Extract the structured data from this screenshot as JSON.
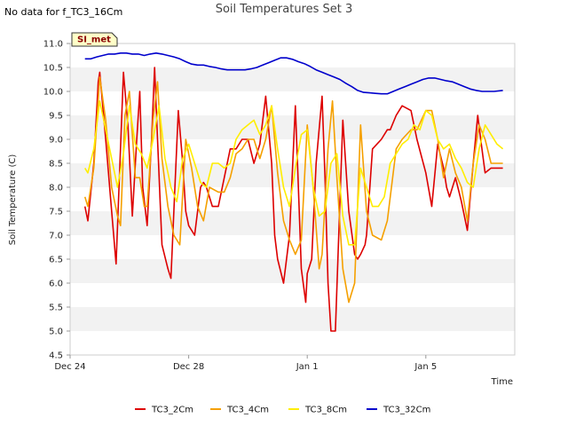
{
  "header": {
    "nodata_text": "No data for f_TC3_16Cm",
    "title": "Soil Temperatures Set 3"
  },
  "badge_label": "SI_met",
  "chart_data": {
    "type": "line",
    "title": "Soil Temperatures Set 3",
    "xlabel": "Time",
    "ylabel": "Soil Temperature (C)",
    "xlim": [
      0,
      15
    ],
    "ylim": [
      4.5,
      11.0
    ],
    "x_ticks": [
      {
        "x": 0,
        "label": "Dec 24"
      },
      {
        "x": 4,
        "label": "Dec 28"
      },
      {
        "x": 8,
        "label": "Jan 1"
      },
      {
        "x": 12,
        "label": "Jan 5"
      }
    ],
    "y_ticks": [
      4.5,
      5.0,
      5.5,
      6.0,
      6.5,
      7.0,
      7.5,
      8.0,
      8.5,
      9.0,
      9.5,
      10.0,
      10.5,
      11.0
    ],
    "y_tick_labels": [
      "4.5",
      "5.0",
      "5.5",
      "6.0",
      "6.5",
      "7.0",
      "7.5",
      "8.0",
      "8.5",
      "9.0",
      "9.5",
      "10.0",
      "10.5",
      "11.0"
    ],
    "grid": "horizontal alternating bands",
    "legend_position": "bottom",
    "series": [
      {
        "name": "TC3_2Cm",
        "color": "#dd0000",
        "x": [
          0.5,
          0.6,
          0.8,
          0.95,
          1.0,
          1.2,
          1.4,
          1.55,
          1.65,
          1.8,
          1.95,
          2.1,
          2.25,
          2.35,
          2.45,
          2.6,
          2.75,
          2.85,
          2.95,
          3.1,
          3.3,
          3.4,
          3.5,
          3.65,
          3.8,
          3.9,
          4.0,
          4.2,
          4.4,
          4.5,
          4.6,
          4.8,
          5.0,
          5.2,
          5.4,
          5.6,
          5.8,
          6.0,
          6.2,
          6.4,
          6.6,
          6.8,
          6.9,
          7.0,
          7.2,
          7.4,
          7.6,
          7.7,
          7.8,
          7.95,
          8.0,
          8.15,
          8.3,
          8.5,
          8.6,
          8.7,
          8.8,
          8.95,
          9.05,
          9.2,
          9.4,
          9.6,
          9.7,
          9.8,
          9.95,
          10.0,
          10.2,
          10.5,
          10.7,
          10.8,
          11.0,
          11.2,
          11.5,
          11.7,
          12.0,
          12.2,
          12.4,
          12.6,
          12.7,
          12.8,
          13.0,
          13.2,
          13.4,
          13.6,
          13.75,
          13.85,
          14.0,
          14.2,
          14.4,
          14.6
        ],
        "y": [
          7.6,
          7.3,
          8.5,
          10.2,
          10.4,
          9.0,
          7.5,
          6.4,
          8.0,
          10.4,
          9.3,
          7.4,
          9.0,
          10.0,
          8.0,
          7.2,
          9.0,
          10.5,
          9.0,
          6.8,
          6.3,
          6.1,
          7.5,
          9.6,
          8.5,
          7.5,
          7.2,
          7.0,
          8.0,
          8.1,
          8.0,
          7.6,
          7.6,
          8.2,
          8.8,
          8.8,
          9.0,
          9.0,
          8.5,
          8.9,
          9.9,
          8.5,
          7.0,
          6.5,
          6.0,
          7.0,
          9.7,
          8.0,
          6.3,
          5.6,
          6.2,
          6.5,
          8.5,
          9.9,
          8.2,
          6.0,
          5.0,
          5.0,
          6.8,
          9.4,
          7.5,
          6.6,
          6.5,
          6.6,
          6.8,
          7.0,
          8.8,
          9.0,
          9.2,
          9.2,
          9.5,
          9.7,
          9.6,
          9.0,
          8.3,
          7.6,
          8.9,
          8.4,
          8.0,
          7.8,
          8.2,
          7.7,
          7.1,
          8.5,
          9.5,
          9.0,
          8.3,
          8.4,
          8.4,
          8.4
        ]
      },
      {
        "name": "TC3_4Cm",
        "color": "#f5a000",
        "x": [
          0.5,
          0.6,
          0.8,
          1.0,
          1.2,
          1.4,
          1.6,
          1.7,
          1.85,
          2.0,
          2.2,
          2.35,
          2.5,
          2.6,
          2.8,
          2.95,
          3.1,
          3.3,
          3.5,
          3.7,
          3.9,
          4.1,
          4.3,
          4.5,
          4.7,
          5.0,
          5.2,
          5.4,
          5.6,
          5.8,
          6.0,
          6.2,
          6.4,
          6.6,
          6.8,
          7.0,
          7.2,
          7.4,
          7.6,
          7.8,
          8.0,
          8.2,
          8.4,
          8.5,
          8.7,
          8.85,
          9.0,
          9.2,
          9.4,
          9.6,
          9.8,
          10.0,
          10.2,
          10.5,
          10.7,
          11.0,
          11.2,
          11.5,
          11.7,
          12.0,
          12.2,
          12.4,
          12.6,
          12.8,
          13.0,
          13.2,
          13.4,
          13.6,
          13.8,
          14.0,
          14.2,
          14.4,
          14.6
        ],
        "y": [
          7.8,
          7.6,
          8.4,
          10.3,
          9.4,
          8.0,
          7.4,
          7.2,
          9.5,
          10.0,
          8.2,
          8.2,
          7.6,
          7.6,
          9.4,
          10.2,
          8.6,
          7.6,
          7.0,
          6.8,
          9.0,
          8.4,
          7.6,
          7.3,
          8.0,
          7.9,
          7.9,
          8.2,
          8.7,
          8.8,
          9.0,
          9.0,
          8.6,
          9.0,
          9.7,
          8.3,
          7.3,
          6.9,
          6.6,
          6.9,
          9.3,
          8.0,
          6.3,
          6.6,
          8.8,
          9.8,
          8.2,
          6.3,
          5.6,
          6.0,
          9.3,
          7.5,
          7.0,
          6.9,
          7.3,
          8.8,
          9.0,
          9.2,
          9.2,
          9.6,
          9.6,
          9.0,
          8.2,
          8.8,
          8.3,
          8.0,
          7.3,
          8.5,
          9.3,
          9.0,
          8.5,
          8.5,
          8.5
        ]
      },
      {
        "name": "TC3_8Cm",
        "color": "#ffee00",
        "x": [
          0.5,
          0.6,
          0.8,
          1.0,
          1.2,
          1.4,
          1.6,
          1.8,
          2.0,
          2.2,
          2.4,
          2.6,
          2.8,
          3.0,
          3.2,
          3.4,
          3.6,
          3.8,
          4.0,
          4.2,
          4.4,
          4.6,
          4.8,
          5.0,
          5.2,
          5.4,
          5.6,
          5.8,
          6.0,
          6.2,
          6.4,
          6.6,
          6.8,
          7.0,
          7.2,
          7.4,
          7.6,
          7.8,
          8.0,
          8.2,
          8.4,
          8.6,
          8.8,
          9.0,
          9.2,
          9.4,
          9.6,
          9.8,
          10.0,
          10.2,
          10.4,
          10.6,
          10.8,
          11.0,
          11.2,
          11.4,
          11.6,
          11.8,
          12.0,
          12.2,
          12.4,
          12.6,
          12.8,
          13.0,
          13.2,
          13.4,
          13.6,
          13.8,
          14.0,
          14.2,
          14.4,
          14.6
        ],
        "y": [
          8.4,
          8.3,
          8.8,
          9.8,
          9.2,
          8.6,
          8.0,
          8.7,
          9.7,
          8.9,
          8.7,
          8.4,
          9.0,
          9.7,
          8.6,
          8.0,
          7.7,
          8.6,
          8.9,
          8.5,
          8.1,
          8.0,
          8.5,
          8.5,
          8.4,
          8.5,
          9.0,
          9.2,
          9.3,
          9.4,
          9.1,
          9.3,
          9.7,
          8.8,
          8.0,
          7.6,
          8.4,
          9.1,
          9.2,
          8.0,
          7.4,
          7.5,
          8.5,
          8.7,
          7.4,
          6.8,
          6.8,
          8.4,
          8.0,
          7.6,
          7.6,
          7.8,
          8.5,
          8.7,
          8.9,
          9.0,
          9.3,
          9.2,
          9.6,
          9.5,
          9.0,
          8.8,
          8.9,
          8.6,
          8.4,
          8.1,
          8.0,
          8.8,
          9.3,
          9.1,
          8.9,
          8.8
        ]
      },
      {
        "name": "TC3_32Cm",
        "color": "#0000cc",
        "x": [
          0.5,
          0.7,
          0.9,
          1.1,
          1.3,
          1.5,
          1.7,
          1.9,
          2.1,
          2.3,
          2.5,
          2.7,
          2.9,
          3.1,
          3.3,
          3.5,
          3.7,
          3.9,
          4.1,
          4.3,
          4.5,
          4.7,
          4.9,
          5.1,
          5.3,
          5.5,
          5.7,
          5.9,
          6.1,
          6.3,
          6.5,
          6.7,
          6.9,
          7.1,
          7.3,
          7.5,
          7.7,
          7.9,
          8.1,
          8.3,
          8.5,
          8.7,
          8.9,
          9.1,
          9.3,
          9.5,
          9.7,
          9.9,
          10.1,
          10.3,
          10.5,
          10.7,
          10.9,
          11.1,
          11.3,
          11.5,
          11.7,
          11.9,
          12.1,
          12.3,
          12.5,
          12.7,
          12.9,
          13.1,
          13.3,
          13.5,
          13.7,
          13.9,
          14.1,
          14.3,
          14.6
        ],
        "y": [
          10.68,
          10.68,
          10.72,
          10.75,
          10.78,
          10.78,
          10.8,
          10.8,
          10.78,
          10.78,
          10.75,
          10.78,
          10.8,
          10.78,
          10.75,
          10.72,
          10.68,
          10.62,
          10.57,
          10.55,
          10.55,
          10.52,
          10.5,
          10.47,
          10.45,
          10.45,
          10.45,
          10.45,
          10.47,
          10.5,
          10.55,
          10.6,
          10.65,
          10.7,
          10.7,
          10.67,
          10.62,
          10.58,
          10.52,
          10.45,
          10.4,
          10.35,
          10.3,
          10.25,
          10.17,
          10.1,
          10.02,
          9.98,
          9.97,
          9.96,
          9.95,
          9.95,
          10.0,
          10.05,
          10.1,
          10.15,
          10.2,
          10.25,
          10.28,
          10.28,
          10.25,
          10.22,
          10.2,
          10.15,
          10.1,
          10.05,
          10.02,
          10.0,
          10.0,
          10.0,
          10.02
        ]
      }
    ]
  }
}
